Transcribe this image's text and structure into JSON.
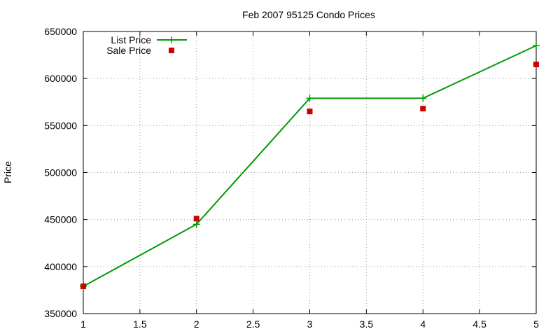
{
  "chart_data": {
    "type": "line",
    "title": "Feb 2007 95125 Condo Prices",
    "xlabel": "",
    "ylabel": "Price",
    "xlim": [
      1,
      5
    ],
    "ylim": [
      350000,
      650000
    ],
    "xticks": [
      1,
      1.5,
      2,
      2.5,
      3,
      3.5,
      4,
      4.5,
      5
    ],
    "yticks": [
      350000,
      400000,
      450000,
      500000,
      550000,
      600000,
      650000
    ],
    "grid": true,
    "legend_position": "top-left",
    "series": [
      {
        "name": "List Price",
        "style": "line+cross",
        "color": "#009900",
        "x": [
          1,
          2,
          3,
          4,
          5
        ],
        "values": [
          379000,
          445000,
          579000,
          579000,
          635000
        ]
      },
      {
        "name": "Sale Price",
        "style": "square-points",
        "color": "#cc0000",
        "x": [
          1,
          2,
          3,
          4,
          5
        ],
        "values": [
          379000,
          451000,
          565000,
          568000,
          615000
        ]
      }
    ]
  }
}
